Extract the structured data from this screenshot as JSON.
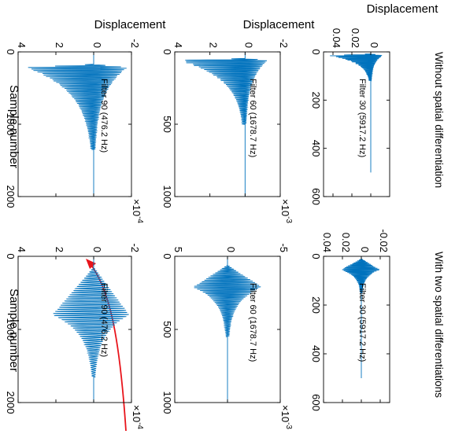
{
  "figure": {
    "column_titles": [
      "Without spatial differentiation",
      "With two spatial differentiations"
    ],
    "ylabel": "Displacement",
    "xlabel": "Sample number",
    "accent_color": "#0072BD",
    "arrow_color": "#E8141B",
    "rotation": "90deg clockwise"
  },
  "chart_data": [
    {
      "id": "p1",
      "type": "line",
      "column": "Without spatial differentiation",
      "row": 1,
      "annotation": "Filter 30 (5917.2 Hz)",
      "xlim": [
        0,
        600
      ],
      "ylim": [
        -0.02,
        0.05
      ],
      "xticks": [
        "0",
        "200",
        "400",
        "600"
      ],
      "xtick_values": [
        0,
        200,
        400,
        600
      ],
      "yticks": [
        "0",
        "0.02",
        "0.04"
      ],
      "ytick_values": [
        0,
        0.02,
        0.04
      ],
      "ylabel": "Displacement",
      "exponent": "",
      "signal": {
        "onset": 8,
        "peak_at": 15,
        "peak_pos": 0.045,
        "peak_neg": -0.013,
        "decay_end": 120,
        "end": 500,
        "cycles": 14
      }
    },
    {
      "id": "p2",
      "type": "line",
      "column": "With two spatial differentiations",
      "row": 1,
      "annotation": "Filter 30 (5917.2 Hz)",
      "xlim": [
        0,
        600
      ],
      "ylim": [
        -0.03,
        0.04
      ],
      "xticks": [
        "0",
        "200",
        "400",
        "600"
      ],
      "xtick_values": [
        0,
        200,
        400,
        600
      ],
      "yticks": [
        "-0.02",
        "0",
        "0.02",
        "0.04"
      ],
      "ytick_values": [
        -0.02,
        0,
        0.02,
        0.04
      ],
      "ylabel": "",
      "exponent": "",
      "signal": {
        "onset": 10,
        "peak_at": 55,
        "peak_pos": 0.022,
        "peak_neg": -0.02,
        "decay_end": 150,
        "end": 500,
        "cycles": 16
      }
    },
    {
      "id": "p3",
      "type": "line",
      "column": "Without spatial differentiation",
      "row": 2,
      "annotation": "Filter 60 (1678.7 Hz)",
      "xlim": [
        0,
        1000
      ],
      "ylim": [
        -2,
        4
      ],
      "xticks": [
        "0",
        "500",
        "1000"
      ],
      "xtick_values": [
        0,
        500,
        1000
      ],
      "yticks": [
        "-2",
        "0",
        "2",
        "4"
      ],
      "ytick_values": [
        -2,
        0,
        2,
        4
      ],
      "ylabel": "Displacement",
      "exponent": "×10",
      "exponent_power": "-3",
      "signal": {
        "onset": 45,
        "peak_at": 58,
        "peak_pos": 3.8,
        "peak_neg": -1.3,
        "decay_end": 500,
        "end": 1000,
        "cycles": 22
      }
    },
    {
      "id": "p4",
      "type": "line",
      "column": "With two spatial differentiations",
      "row": 2,
      "annotation": "Filter 60 (1678.7 Hz)",
      "xlim": [
        0,
        1000
      ],
      "ylim": [
        -5,
        5
      ],
      "xticks": [
        "0",
        "500",
        "1000"
      ],
      "xtick_values": [
        0,
        500,
        1000
      ],
      "yticks": [
        "-5",
        "0",
        "5"
      ],
      "ytick_values": [
        -5,
        0,
        5
      ],
      "ylabel": "",
      "exponent": "×10",
      "exponent_power": "-3",
      "signal": {
        "onset": 60,
        "peak_at": 210,
        "peak_pos": 3.3,
        "peak_neg": -3.3,
        "decay_end": 550,
        "end": 1000,
        "cycles": 22
      }
    },
    {
      "id": "p5",
      "type": "line",
      "column": "Without spatial differentiation",
      "row": 3,
      "annotation": "Filter 90 (476.2 Hz)",
      "xlim": [
        0,
        2000
      ],
      "ylim": [
        -2,
        4
      ],
      "xticks": [
        "0",
        "1000",
        "2000"
      ],
      "xtick_values": [
        0,
        1000,
        2000
      ],
      "yticks": [
        "-2",
        "0",
        "2",
        "4"
      ],
      "ytick_values": [
        -2,
        0,
        2,
        4
      ],
      "ylabel": "Displacement",
      "exponent": "×10",
      "exponent_power": "-4",
      "signal": {
        "onset": 170,
        "peak_at": 215,
        "peak_pos": 3.6,
        "peak_neg": -1.8,
        "decay_end": 1350,
        "end": 2000,
        "cycles": 26
      }
    },
    {
      "id": "p6",
      "type": "line",
      "column": "With two spatial differentiations",
      "row": 3,
      "annotation": "Filter 90 (476.2 Hz)",
      "xlim": [
        0,
        2000
      ],
      "ylim": [
        -2,
        4
      ],
      "xticks": [
        "0",
        "1000",
        "2000"
      ],
      "xtick_values": [
        0,
        1000,
        2000
      ],
      "yticks": [
        "-2",
        "0",
        "2",
        "4"
      ],
      "ytick_values": [
        -2,
        0,
        2,
        4
      ],
      "ylabel": "",
      "exponent": "×10",
      "exponent_power": "-4",
      "signal": {
        "onset": 150,
        "peak_at": 800,
        "peak_pos": 2.2,
        "peak_neg": -1.9,
        "decay_end": 1650,
        "end": 2000,
        "cycles": 24
      }
    }
  ]
}
